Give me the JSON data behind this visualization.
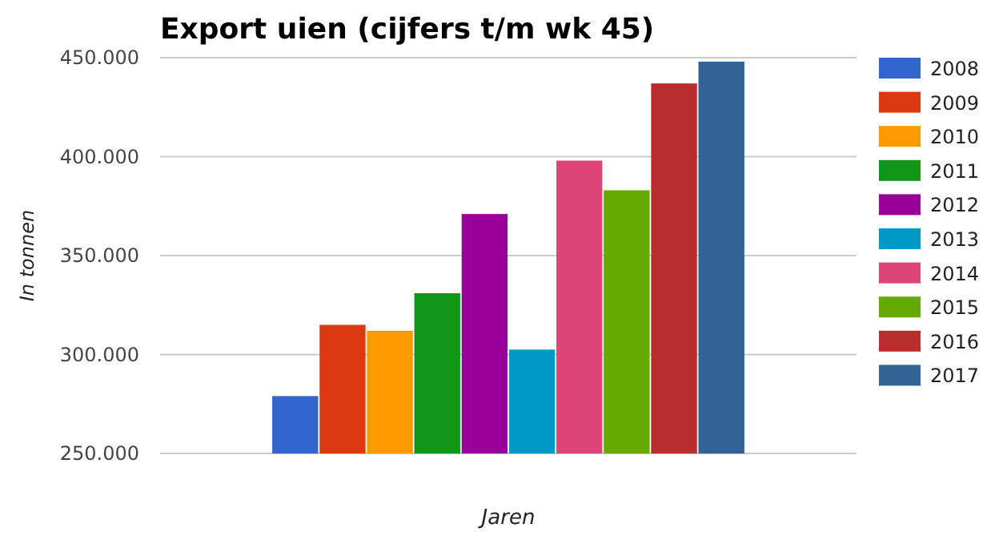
{
  "chart_data": {
    "type": "bar",
    "title": "Export uien (cijfers t/m wk 45)",
    "xlabel": "Jaren",
    "ylabel": "In tonnen",
    "categories": [
      null
    ],
    "series": [
      {
        "name": "2008",
        "color": "#3366cc",
        "values": [
          279000
        ]
      },
      {
        "name": "2009",
        "color": "#dc3912",
        "values": [
          315000
        ]
      },
      {
        "name": "2010",
        "color": "#ff9900",
        "values": [
          312000
        ]
      },
      {
        "name": "2011",
        "color": "#109618",
        "values": [
          331000
        ]
      },
      {
        "name": "2012",
        "color": "#990099",
        "values": [
          371000
        ]
      },
      {
        "name": "2013",
        "color": "#0099c6",
        "values": [
          302500
        ]
      },
      {
        "name": "2014",
        "color": "#dd4477",
        "values": [
          398000
        ]
      },
      {
        "name": "2015",
        "color": "#66aa00",
        "values": [
          383000
        ]
      },
      {
        "name": "2016",
        "color": "#b82e2e",
        "values": [
          437000
        ]
      },
      {
        "name": "2017",
        "color": "#316395",
        "values": [
          448000
        ]
      }
    ],
    "ylim": [
      250000,
      450000
    ],
    "yticks": [
      {
        "value": 250000,
        "label": "250.000"
      },
      {
        "value": 300000,
        "label": "300.000"
      },
      {
        "value": 350000,
        "label": "350.000"
      },
      {
        "value": 400000,
        "label": "400.000"
      },
      {
        "value": 450000,
        "label": "450.000"
      }
    ],
    "grid": "y",
    "legend": "right"
  }
}
